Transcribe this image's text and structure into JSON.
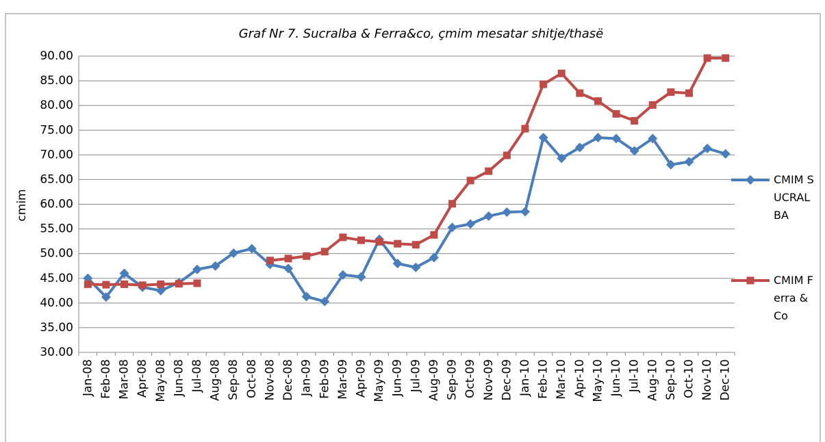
{
  "chart_data": {
    "type": "line",
    "title": "Graf Nr 7. Sucralba & Ferra&co, çmim mesatar shitje/thasë",
    "y_label": "cmim",
    "categories": [
      "Jan-08",
      "Feb-08",
      "Mar-08",
      "Apr-08",
      "May-08",
      "Jun-08",
      "Jul-08",
      "Aug-08",
      "Sep-08",
      "Oct-08",
      "Nov-08",
      "Dec-08",
      "Jan-09",
      "Feb-09",
      "Mar-09",
      "Apr-09",
      "May-09",
      "Jun-09",
      "Jul-09",
      "Aug-09",
      "Sep-09",
      "Oct-09",
      "Nov-09",
      "Dec-09",
      "Jan-10",
      "Feb-10",
      "Mar-10",
      "Apr-10",
      "May-10",
      "Jun-10",
      "Jul-10",
      "Aug-10",
      "Sep-10",
      "Oct-10",
      "Nov-10",
      "Dec-10"
    ],
    "series": [
      {
        "name": "CMIM SUCRALBA",
        "color": "#4a7ebb",
        "marker": "diamond",
        "values": [
          45.0,
          41.2,
          46.0,
          43.2,
          42.5,
          44.1,
          46.8,
          47.5,
          50.1,
          51.0,
          47.8,
          47.0,
          41.3,
          40.3,
          45.7,
          45.3,
          52.9,
          48.0,
          47.2,
          49.2,
          55.3,
          56.0,
          57.6,
          58.4,
          58.5,
          73.5,
          69.3,
          71.5,
          73.5,
          73.3,
          70.8,
          73.3,
          68.0,
          68.6,
          71.3,
          70.2
        ]
      },
      {
        "name": "CMIM Ferra &Co",
        "color": "#be4b48",
        "marker": "square",
        "values": [
          43.8,
          43.7,
          43.8,
          43.6,
          43.8,
          43.9,
          44.0,
          null,
          null,
          null,
          48.6,
          49.0,
          49.5,
          50.4,
          53.3,
          52.7,
          52.4,
          52.0,
          51.8,
          53.8,
          60.1,
          64.8,
          66.7,
          69.9,
          75.3,
          84.3,
          86.5,
          82.5,
          80.9,
          78.3,
          76.9,
          80.1,
          82.7,
          82.5,
          89.6,
          89.6
        ]
      }
    ],
    "ylim": [
      30,
      90
    ],
    "yticks": [
      {
        "value": 30,
        "label": "30.00"
      },
      {
        "value": 35,
        "label": "35.00"
      },
      {
        "value": 40,
        "label": "40.00"
      },
      {
        "value": 45,
        "label": "45.00"
      },
      {
        "value": 50,
        "label": "50.00"
      },
      {
        "value": 55,
        "label": "55.00"
      },
      {
        "value": 60,
        "label": "60.00"
      },
      {
        "value": 65,
        "label": "65.00"
      },
      {
        "value": 70,
        "label": "70.00"
      },
      {
        "value": 75,
        "label": "75.00"
      },
      {
        "value": 80,
        "label": "80.00"
      },
      {
        "value": 85,
        "label": "85.00"
      },
      {
        "value": 90,
        "label": "90.00"
      }
    ],
    "grid": true,
    "legend": "right"
  }
}
